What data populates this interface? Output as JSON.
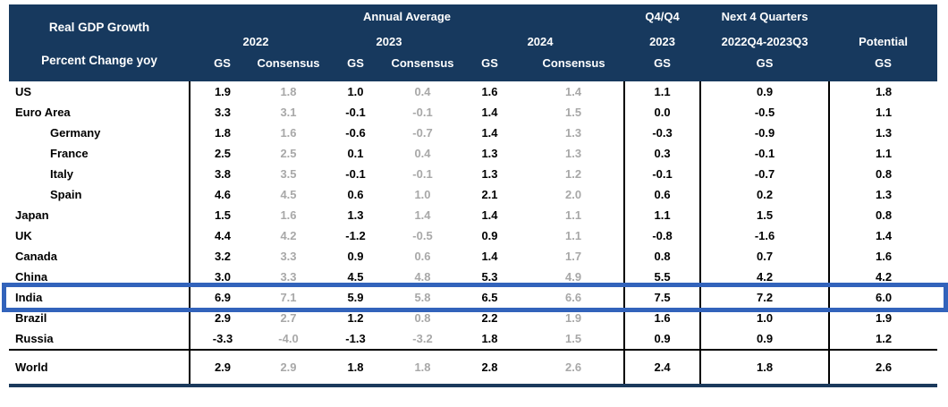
{
  "header": {
    "row_title": "Real GDP Growth",
    "row_subtitle": "Percent Change yoy",
    "annual_average": "Annual Average",
    "year_2022": "2022",
    "year_2023": "2023",
    "year_2024": "2024",
    "gs": "GS",
    "consensus": "Consensus",
    "q4q4_top": "Q4/Q4",
    "q4q4_year": "2023",
    "next4q_top": "Next 4 Quarters",
    "next4q_range": "2022Q4-2023Q3",
    "potential": "Potential"
  },
  "table": {
    "column_keys": [
      "gs-2022",
      "consensus-2022",
      "gs-2023",
      "consensus-2023",
      "gs-2024",
      "consensus-2024",
      "q4q4-2023-gs",
      "next4q-gs",
      "potential-gs"
    ],
    "rows": [
      {
        "label": "US",
        "indent": false,
        "highlight": false,
        "world": false,
        "values": [
          "1.9",
          "1.8",
          "1.0",
          "0.4",
          "1.6",
          "1.4",
          "1.1",
          "0.9",
          "1.8"
        ]
      },
      {
        "label": "Euro Area",
        "indent": false,
        "highlight": false,
        "world": false,
        "values": [
          "3.3",
          "3.1",
          "-0.1",
          "-0.1",
          "1.4",
          "1.5",
          "0.0",
          "-0.5",
          "1.1"
        ]
      },
      {
        "label": "Germany",
        "indent": true,
        "highlight": false,
        "world": false,
        "values": [
          "1.8",
          "1.6",
          "-0.6",
          "-0.7",
          "1.4",
          "1.3",
          "-0.3",
          "-0.9",
          "1.3"
        ]
      },
      {
        "label": "France",
        "indent": true,
        "highlight": false,
        "world": false,
        "values": [
          "2.5",
          "2.5",
          "0.1",
          "0.4",
          "1.3",
          "1.3",
          "0.3",
          "-0.1",
          "1.1"
        ]
      },
      {
        "label": "Italy",
        "indent": true,
        "highlight": false,
        "world": false,
        "values": [
          "3.8",
          "3.5",
          "-0.1",
          "-0.1",
          "1.3",
          "1.2",
          "-0.1",
          "-0.7",
          "0.8"
        ]
      },
      {
        "label": "Spain",
        "indent": true,
        "highlight": false,
        "world": false,
        "values": [
          "4.6",
          "4.5",
          "0.6",
          "1.0",
          "2.1",
          "2.0",
          "0.6",
          "0.2",
          "1.3"
        ]
      },
      {
        "label": "Japan",
        "indent": false,
        "highlight": false,
        "world": false,
        "values": [
          "1.5",
          "1.6",
          "1.3",
          "1.4",
          "1.4",
          "1.1",
          "1.1",
          "1.5",
          "0.8"
        ]
      },
      {
        "label": "UK",
        "indent": false,
        "highlight": false,
        "world": false,
        "values": [
          "4.4",
          "4.2",
          "-1.2",
          "-0.5",
          "0.9",
          "1.1",
          "-0.8",
          "-1.6",
          "1.4"
        ]
      },
      {
        "label": "Canada",
        "indent": false,
        "highlight": false,
        "world": false,
        "values": [
          "3.2",
          "3.3",
          "0.9",
          "0.6",
          "1.4",
          "1.7",
          "0.8",
          "0.7",
          "1.6"
        ]
      },
      {
        "label": "China",
        "indent": false,
        "highlight": false,
        "world": false,
        "values": [
          "3.0",
          "3.3",
          "4.5",
          "4.8",
          "5.3",
          "4.9",
          "5.5",
          "4.2",
          "4.2"
        ]
      },
      {
        "label": "India",
        "indent": false,
        "highlight": true,
        "world": false,
        "values": [
          "6.9",
          "7.1",
          "5.9",
          "5.8",
          "6.5",
          "6.6",
          "7.5",
          "7.2",
          "6.0"
        ]
      },
      {
        "label": "Brazil",
        "indent": false,
        "highlight": false,
        "world": false,
        "values": [
          "2.9",
          "2.7",
          "1.2",
          "0.8",
          "2.2",
          "1.9",
          "1.6",
          "1.0",
          "1.9"
        ]
      },
      {
        "label": "Russia",
        "indent": false,
        "highlight": false,
        "world": false,
        "values": [
          "-3.3",
          "-4.0",
          "-1.3",
          "-3.2",
          "1.8",
          "1.5",
          "0.9",
          "0.9",
          "1.2"
        ]
      },
      {
        "label": "World",
        "indent": false,
        "highlight": false,
        "world": true,
        "values": [
          "2.9",
          "2.9",
          "1.8",
          "1.8",
          "2.8",
          "2.6",
          "2.4",
          "1.8",
          "2.6"
        ]
      }
    ]
  },
  "colors": {
    "header_bg": "#17395e",
    "header_text": "#ffffff",
    "gs_value": "#000000",
    "consensus_value": "#a8a8a8",
    "highlight_border": "#3263bb",
    "bottom_rule": "#1b3a5c",
    "grid_line": "#000000"
  }
}
